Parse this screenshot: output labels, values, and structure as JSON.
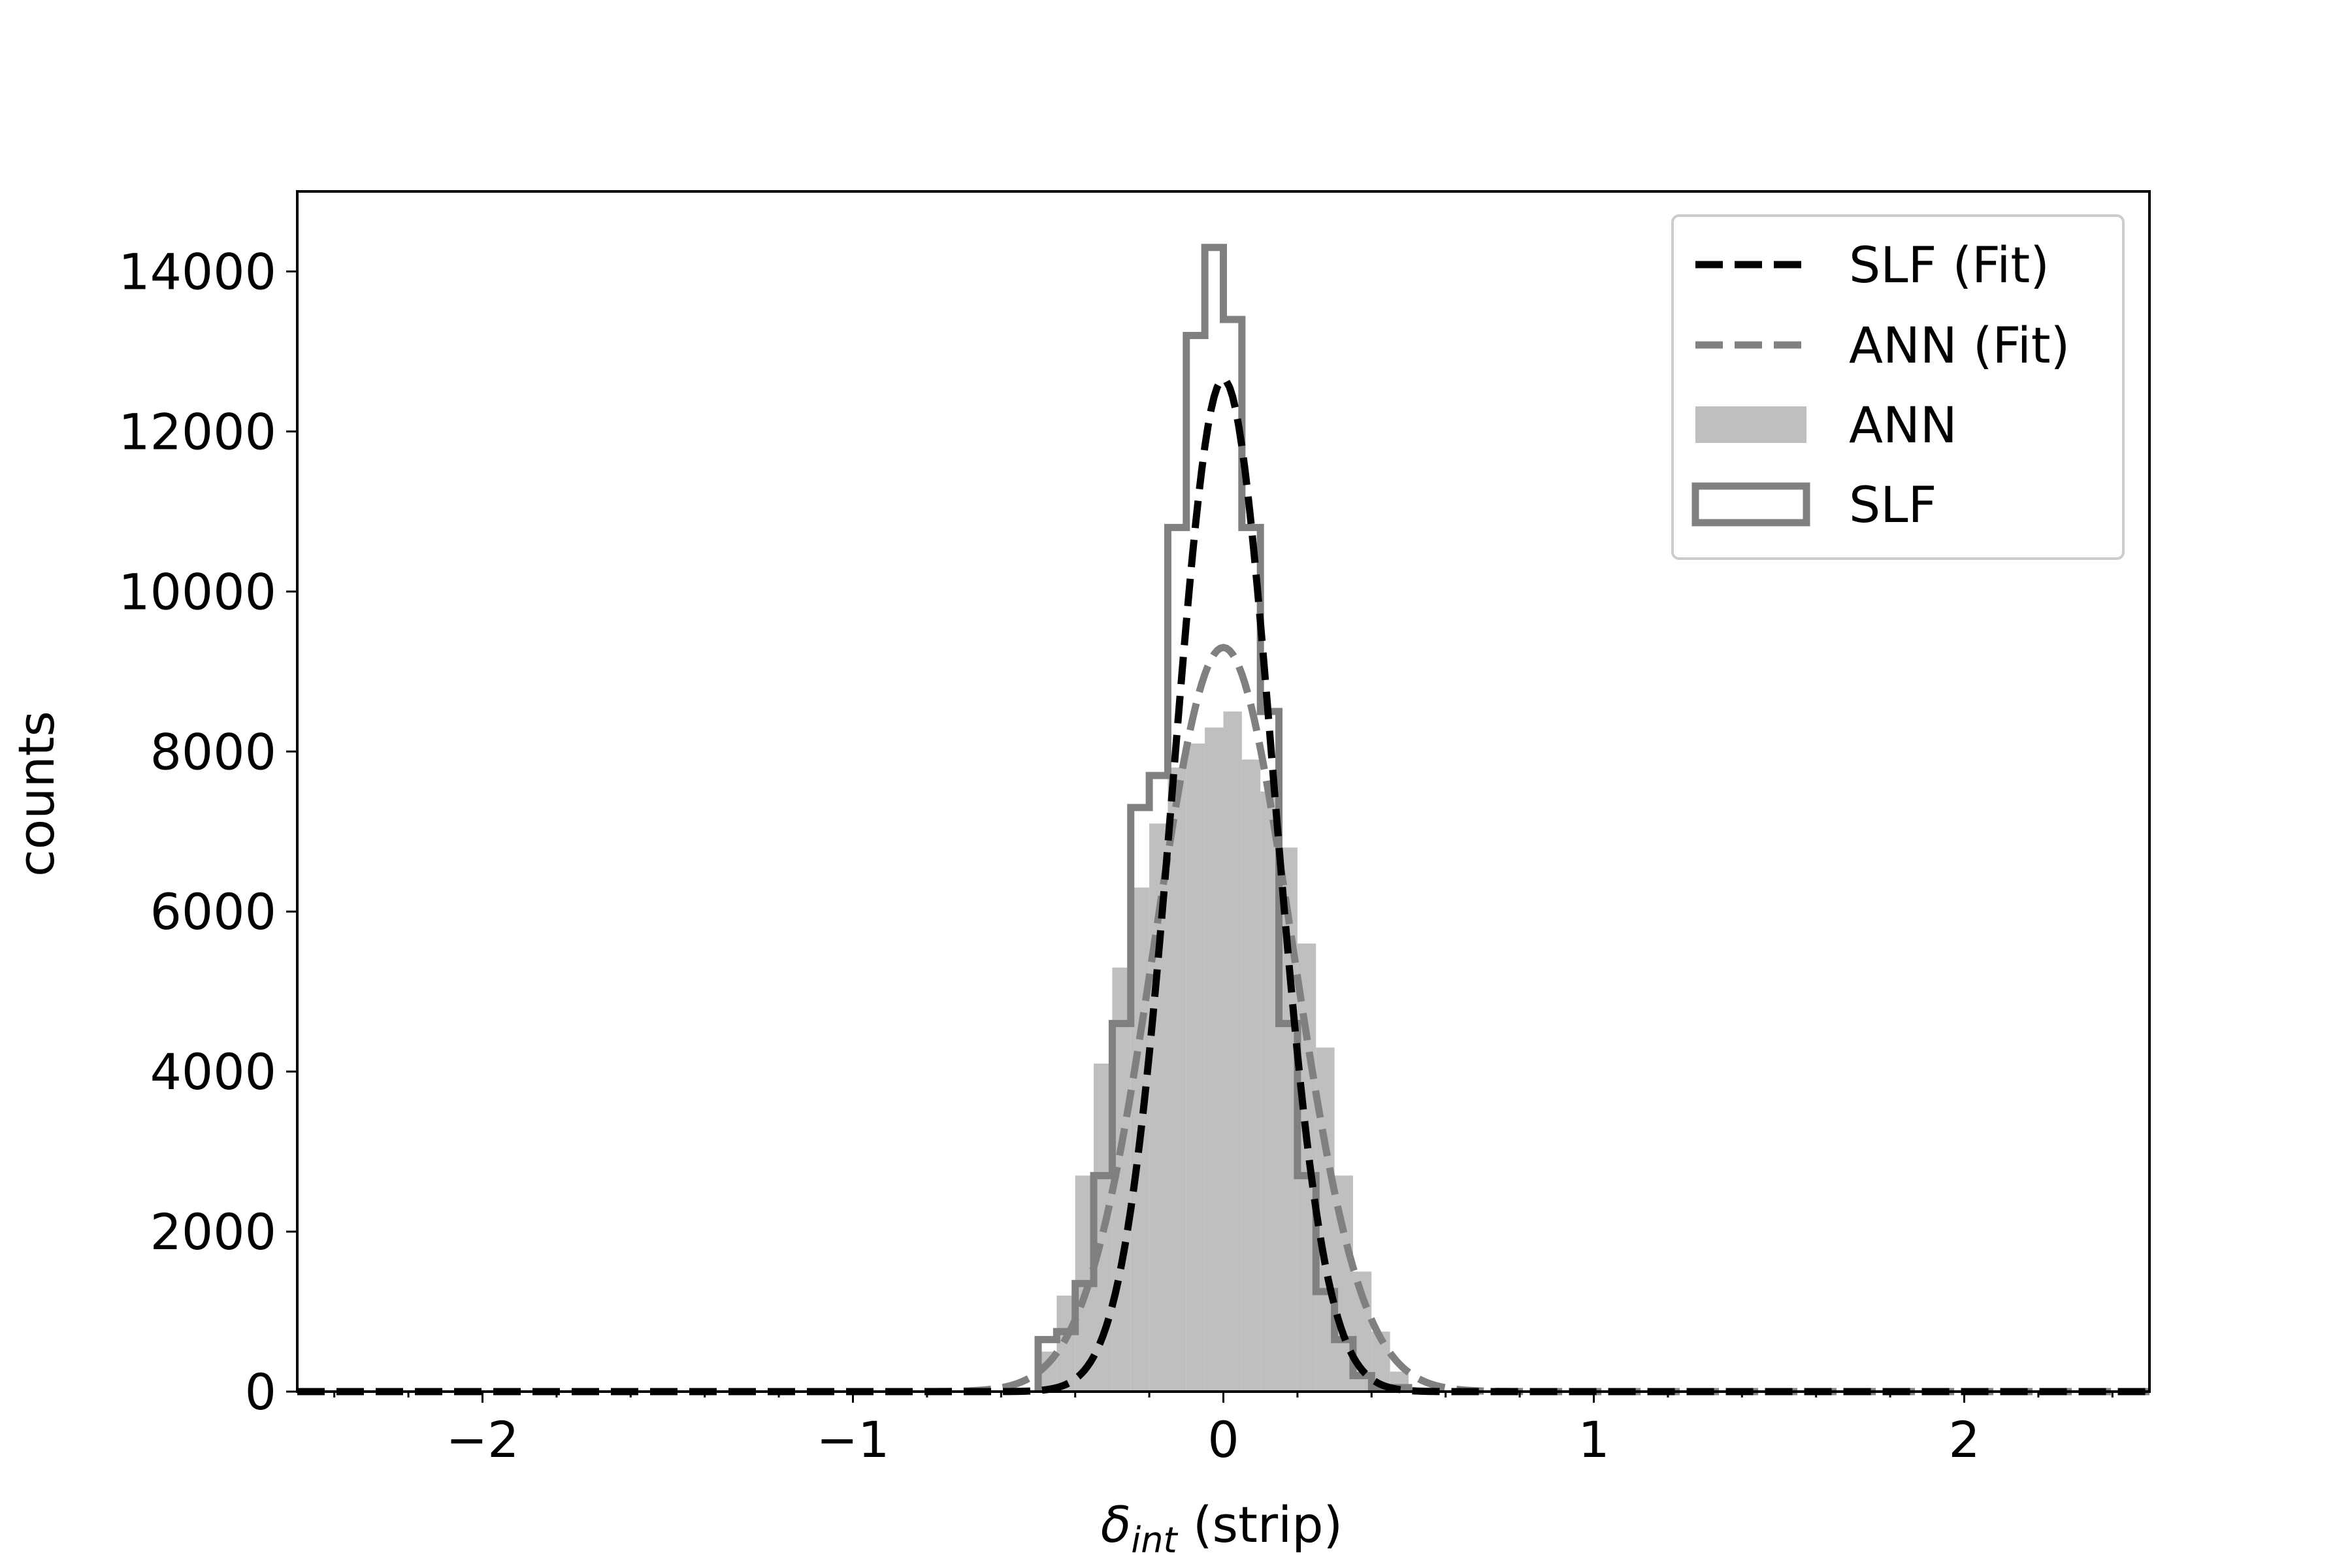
{
  "chart_data": {
    "type": "bar",
    "title": "",
    "xlabel": "(strip)",
    "xlabel_symbol": "δ",
    "xlabel_subscript": "int",
    "ylabel": "counts",
    "xlim": [
      -2.5,
      2.5
    ],
    "ylim": [
      0,
      15000
    ],
    "xticks": [
      -2,
      -1,
      0,
      1,
      2
    ],
    "xtick_labels": [
      "−2",
      "−1",
      "0",
      "1",
      "2"
    ],
    "yticks": [
      0,
      2000,
      4000,
      6000,
      8000,
      10000,
      12000,
      14000
    ],
    "ytick_labels": [
      "0",
      "2000",
      "4000",
      "6000",
      "8000",
      "10000",
      "12000",
      "14000"
    ],
    "grid": false,
    "legend_position": "top-right",
    "bin_width": 0.05,
    "series": [
      {
        "name": "ANN",
        "kind": "histogram-filled",
        "color": "#bfbfbf",
        "bin_edges": [
          -0.5,
          -0.45,
          -0.4,
          -0.35,
          -0.3,
          -0.25,
          -0.2,
          -0.15,
          -0.1,
          -0.05,
          0.0,
          0.05,
          0.1,
          0.15,
          0.2,
          0.25,
          0.3,
          0.35,
          0.4,
          0.45,
          0.5
        ],
        "counts": [
          500,
          1200,
          2700,
          4100,
          5300,
          6300,
          7100,
          7800,
          8100,
          8300,
          8500,
          7900,
          7500,
          6800,
          5600,
          4300,
          2700,
          1500,
          750,
          250
        ]
      },
      {
        "name": "SLF",
        "kind": "histogram-step",
        "color": "#808080",
        "bin_edges": [
          -0.5,
          -0.45,
          -0.4,
          -0.35,
          -0.3,
          -0.25,
          -0.2,
          -0.15,
          -0.1,
          -0.05,
          0.0,
          0.05,
          0.1,
          0.15,
          0.2,
          0.25,
          0.3,
          0.35,
          0.4,
          0.45,
          0.5
        ],
        "counts": [
          650,
          750,
          1350,
          2700,
          4600,
          7300,
          7700,
          10800,
          13200,
          14300,
          13400,
          10800,
          8500,
          4600,
          2700,
          1250,
          650,
          200,
          50,
          50
        ]
      },
      {
        "name": "SLF (Fit)",
        "kind": "gaussian-fit",
        "color": "#000000",
        "dash": "dashed",
        "amplitude": 12650,
        "mean": 0.0,
        "sigma": 0.135
      },
      {
        "name": "ANN (Fit)",
        "kind": "gaussian-fit",
        "color": "#808080",
        "dash": "dashed",
        "amplitude": 9300,
        "mean": 0.0,
        "sigma": 0.185
      }
    ],
    "legend": [
      "SLF (Fit)",
      "ANN (Fit)",
      "ANN",
      "SLF"
    ]
  }
}
